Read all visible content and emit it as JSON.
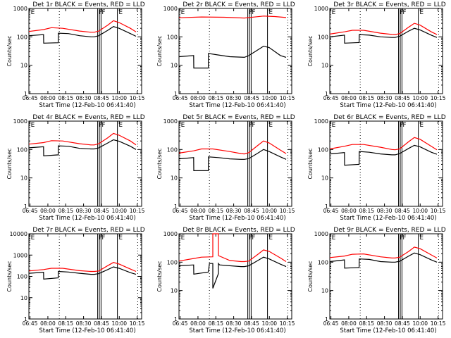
{
  "chart_data": [
    {
      "type": "line",
      "title": "Det 1r BLACK = Events, RED = LLD",
      "xlabel": "Start Time (12-Feb-10 06:41:40)",
      "ylabel": "Counts/sec",
      "yscale": "log",
      "ylim": [
        1,
        1000
      ],
      "ytick_labels": [
        "1",
        "10",
        "100",
        "1000"
      ],
      "xlim": [
        "06:41:40",
        "10:22"
      ],
      "xtick_labels": [
        "06:45",
        "08:00",
        "08:15",
        "08:30",
        "08:45",
        "10:00",
        "10:15"
      ],
      "markers": [
        "E",
        "F",
        "F",
        "E"
      ],
      "series": [
        {
          "name": "LLD",
          "color": "#ff0000",
          "x": [
            0,
            0.13,
            0.2,
            0.3,
            0.45,
            0.55,
            0.58,
            0.62,
            0.7,
            0.75,
            0.8,
            0.9,
            0.95
          ],
          "values": [
            155,
            180,
            210,
            200,
            160,
            145,
            145,
            160,
            260,
            370,
            320,
            200,
            150
          ]
        },
        {
          "name": "Events",
          "color": "#000000",
          "x": [
            0,
            0.13,
            0.131,
            0.26,
            0.261,
            0.35,
            0.45,
            0.55,
            0.58,
            0.62,
            0.7,
            0.75,
            0.8,
            0.9,
            0.95
          ],
          "values": [
            110,
            120,
            60,
            62,
            135,
            130,
            110,
            100,
            100,
            110,
            170,
            230,
            200,
            130,
            105
          ]
        }
      ]
    },
    {
      "type": "line",
      "title": "Det 2r BLACK = Events, RED = LLD",
      "xlabel": "Start Time (12-Feb-10 06:41:40)",
      "ylabel": "Counts/sec",
      "yscale": "log",
      "ylim": [
        1,
        1000
      ],
      "ytick_labels": [
        "1",
        "10",
        "100",
        "1000"
      ],
      "xlim": [
        "06:41:40",
        "10:22"
      ],
      "xtick_labels": [
        "06:45",
        "08:00",
        "08:15",
        "08:30",
        "08:45",
        "10:00",
        "10:15"
      ],
      "markers": [
        "E",
        "F",
        "F",
        "E"
      ],
      "series": [
        {
          "name": "LLD",
          "color": "#ff0000",
          "x": [
            0,
            0.2,
            0.4,
            0.58,
            0.75,
            0.85,
            0.95
          ],
          "values": [
            470,
            500,
            490,
            460,
            540,
            520,
            480
          ]
        },
        {
          "name": "Events",
          "color": "#000000",
          "x": [
            0,
            0.13,
            0.131,
            0.26,
            0.261,
            0.35,
            0.45,
            0.58,
            0.62,
            0.7,
            0.75,
            0.8,
            0.9,
            0.95
          ],
          "values": [
            20,
            22,
            8,
            8,
            26,
            23,
            20,
            19,
            22,
            35,
            47,
            42,
            22,
            19
          ]
        }
      ]
    },
    {
      "type": "line",
      "title": "Det 3r BLACK = Events, RED = LLD",
      "xlabel": "Start Time (12-Feb-10 06:41:40)",
      "ylabel": "Counts/sec",
      "yscale": "log",
      "ylim": [
        1,
        1000
      ],
      "ytick_labels": [
        "1",
        "10",
        "100",
        "1000"
      ],
      "xlim": [
        "06:41:40",
        "10:22"
      ],
      "xtick_labels": [
        "06:45",
        "08:00",
        "08:15",
        "08:30",
        "08:45",
        "10:00",
        "10:15"
      ],
      "markers": [
        "E",
        "F",
        "F",
        "E"
      ],
      "series": [
        {
          "name": "LLD",
          "color": "#ff0000",
          "x": [
            0,
            0.13,
            0.2,
            0.3,
            0.45,
            0.55,
            0.58,
            0.62,
            0.7,
            0.75,
            0.8,
            0.9,
            0.95
          ],
          "values": [
            125,
            150,
            170,
            170,
            135,
            122,
            120,
            130,
            220,
            300,
            260,
            150,
            120
          ]
        },
        {
          "name": "Events",
          "color": "#000000",
          "x": [
            0,
            0.13,
            0.131,
            0.26,
            0.261,
            0.35,
            0.45,
            0.55,
            0.58,
            0.62,
            0.7,
            0.75,
            0.8,
            0.9,
            0.95
          ],
          "values": [
            100,
            115,
            60,
            63,
            120,
            115,
            100,
            95,
            95,
            105,
            160,
            200,
            175,
            115,
            95
          ]
        }
      ]
    },
    {
      "type": "line",
      "title": "Det 4r BLACK = Events, RED = LLD",
      "xlabel": "Start Time (12-Feb-10 06:41:40)",
      "ylabel": "Counts/sec",
      "yscale": "log",
      "ylim": [
        1,
        1000
      ],
      "ytick_labels": [
        "1",
        "10",
        "100",
        "1000"
      ],
      "xlim": [
        "06:41:40",
        "10:22"
      ],
      "xtick_labels": [
        "06:45",
        "08:00",
        "08:15",
        "08:30",
        "08:45",
        "10:00",
        "10:15"
      ],
      "markers": [
        "E",
        "F",
        "F",
        "E"
      ],
      "series": [
        {
          "name": "LLD",
          "color": "#ff0000",
          "x": [
            0,
            0.13,
            0.2,
            0.3,
            0.45,
            0.55,
            0.58,
            0.62,
            0.7,
            0.75,
            0.8,
            0.9,
            0.95
          ],
          "values": [
            155,
            175,
            205,
            200,
            160,
            145,
            145,
            160,
            260,
            370,
            320,
            200,
            145
          ]
        },
        {
          "name": "Events",
          "color": "#000000",
          "x": [
            0,
            0.13,
            0.131,
            0.26,
            0.261,
            0.35,
            0.45,
            0.55,
            0.58,
            0.62,
            0.7,
            0.75,
            0.8,
            0.9,
            0.95
          ],
          "values": [
            115,
            125,
            60,
            65,
            135,
            130,
            110,
            105,
            105,
            115,
            170,
            220,
            195,
            130,
            100
          ]
        }
      ]
    },
    {
      "type": "line",
      "title": "Det 5r BLACK = Events, RED = LLD",
      "xlabel": "Start Time (12-Feb-10 06:41:40)",
      "ylabel": "Counts/sec",
      "yscale": "log",
      "ylim": [
        1,
        1000
      ],
      "ytick_labels": [
        "1",
        "10",
        "100",
        "1000"
      ],
      "xlim": [
        "06:41:40",
        "10:22"
      ],
      "xtick_labels": [
        "06:45",
        "08:00",
        "08:15",
        "08:30",
        "08:45",
        "10:00",
        "10:15"
      ],
      "markers": [
        "E",
        "F",
        "F",
        "E"
      ],
      "series": [
        {
          "name": "LLD",
          "color": "#ff0000",
          "x": [
            0,
            0.13,
            0.2,
            0.3,
            0.45,
            0.55,
            0.58,
            0.62,
            0.7,
            0.75,
            0.8,
            0.9,
            0.95
          ],
          "values": [
            75,
            90,
            105,
            105,
            85,
            72,
            70,
            78,
            140,
            200,
            170,
            95,
            72
          ]
        },
        {
          "name": "Events",
          "color": "#000000",
          "x": [
            0,
            0.13,
            0.131,
            0.26,
            0.261,
            0.35,
            0.45,
            0.55,
            0.58,
            0.62,
            0.7,
            0.75,
            0.8,
            0.9,
            0.95
          ],
          "values": [
            47,
            52,
            18,
            18,
            55,
            52,
            47,
            45,
            45,
            48,
            75,
            100,
            85,
            55,
            45
          ]
        }
      ]
    },
    {
      "type": "line",
      "title": "Det 6r BLACK = Events, RED = LLD",
      "xlabel": "Start Time (12-Feb-10 06:41:40)",
      "ylabel": "Counts/sec",
      "yscale": "log",
      "ylim": [
        1,
        1000
      ],
      "ytick_labels": [
        "1",
        "10",
        "100",
        "1000"
      ],
      "xlim": [
        "06:41:40",
        "10:22"
      ],
      "xtick_labels": [
        "06:45",
        "08:00",
        "08:15",
        "08:30",
        "08:45",
        "10:00",
        "10:15"
      ],
      "markers": [
        "E",
        "F",
        "F",
        "E"
      ],
      "series": [
        {
          "name": "LLD",
          "color": "#ff0000",
          "x": [
            0,
            0.13,
            0.2,
            0.3,
            0.45,
            0.55,
            0.58,
            0.62,
            0.7,
            0.75,
            0.8,
            0.9,
            0.95
          ],
          "values": [
            105,
            130,
            150,
            150,
            120,
            100,
            98,
            105,
            190,
            265,
            230,
            130,
            98
          ]
        },
        {
          "name": "Events",
          "color": "#000000",
          "x": [
            0,
            0.13,
            0.131,
            0.26,
            0.261,
            0.35,
            0.45,
            0.55,
            0.58,
            0.62,
            0.7,
            0.75,
            0.8,
            0.9,
            0.95
          ],
          "values": [
            70,
            78,
            28,
            30,
            85,
            80,
            70,
            65,
            65,
            72,
            110,
            140,
            125,
            80,
            68
          ]
        }
      ]
    },
    {
      "type": "line",
      "title": "Det 7r BLACK = Events, RED = LLD",
      "xlabel": "Start Time (12-Feb-10 06:41:40)",
      "ylabel": "Counts/sec",
      "yscale": "log",
      "ylim": [
        1,
        10000
      ],
      "ytick_labels": [
        "1",
        "10",
        "100",
        "1000",
        "10000"
      ],
      "xlim": [
        "06:41:40",
        "10:22"
      ],
      "xtick_labels": [
        "06:45",
        "08:00",
        "08:15",
        "08:30",
        "08:45",
        "10:00",
        "10:15"
      ],
      "markers": [
        "E",
        "F",
        "F",
        "E"
      ],
      "series": [
        {
          "name": "LLD",
          "color": "#ff0000",
          "x": [
            0,
            0.13,
            0.2,
            0.3,
            0.45,
            0.55,
            0.58,
            0.62,
            0.7,
            0.75,
            0.8,
            0.9,
            0.95
          ],
          "values": [
            180,
            210,
            240,
            240,
            185,
            170,
            170,
            180,
            320,
            450,
            380,
            220,
            170
          ]
        },
        {
          "name": "Events",
          "color": "#000000",
          "x": [
            0,
            0.13,
            0.131,
            0.26,
            0.261,
            0.35,
            0.45,
            0.55,
            0.58,
            0.62,
            0.7,
            0.75,
            0.8,
            0.9,
            0.95
          ],
          "values": [
            140,
            155,
            75,
            85,
            170,
            160,
            140,
            125,
            125,
            135,
            210,
            280,
            240,
            150,
            125
          ]
        }
      ]
    },
    {
      "type": "line",
      "title": "Det 8r BLACK = Events, RED = LLD",
      "xlabel": "Start Time (12-Feb-10 06:41:40)",
      "ylabel": "Counts/sec",
      "yscale": "log",
      "ylim": [
        1,
        1000
      ],
      "ytick_labels": [
        "1",
        "10",
        "100",
        "1000"
      ],
      "xlim": [
        "06:41:40",
        "10:22"
      ],
      "xtick_labels": [
        "06:45",
        "08:00",
        "08:15",
        "08:30",
        "08:45",
        "10:00",
        "10:15"
      ],
      "markers": [
        "E",
        "F",
        "F",
        "E"
      ],
      "series": [
        {
          "name": "LLD",
          "color": "#ff0000",
          "x": [
            0,
            0.13,
            0.2,
            0.3,
            0.3,
            0.35,
            0.35,
            0.45,
            0.55,
            0.58,
            0.62,
            0.7,
            0.75,
            0.8,
            0.9,
            0.95
          ],
          "values": [
            110,
            135,
            150,
            155,
            1000,
            1000,
            170,
            115,
            105,
            105,
            110,
            190,
            270,
            240,
            140,
            105
          ]
        },
        {
          "name": "Events",
          "color": "#000000",
          "x": [
            0,
            0.13,
            0.131,
            0.26,
            0.27,
            0.3,
            0.3,
            0.35,
            0.35,
            0.36,
            0.45,
            0.55,
            0.58,
            0.62,
            0.7,
            0.75,
            0.8,
            0.9,
            0.95
          ],
          "values": [
            75,
            80,
            38,
            45,
            90,
            90,
            12,
            40,
            90,
            80,
            75,
            70,
            70,
            75,
            115,
            150,
            130,
            85,
            70
          ]
        }
      ]
    },
    {
      "type": "line",
      "title": "Det 9r BLACK = Events, RED = LLD",
      "xlabel": "Start Time (12-Feb-10 06:41:40)",
      "ylabel": "Counts/sec",
      "yscale": "log",
      "ylim": [
        1,
        1000
      ],
      "ytick_labels": [
        "1",
        "10",
        "100",
        "1000"
      ],
      "xlim": [
        "06:41:40",
        "10:22"
      ],
      "xtick_labels": [
        "06:45",
        "08:00",
        "08:15",
        "08:30",
        "08:45",
        "10:00",
        "10:15"
      ],
      "markers": [
        "E",
        "F",
        "F",
        "E"
      ],
      "series": [
        {
          "name": "LLD",
          "color": "#ff0000",
          "x": [
            0,
            0.13,
            0.2,
            0.3,
            0.45,
            0.55,
            0.58,
            0.62,
            0.7,
            0.75,
            0.8,
            0.9,
            0.95
          ],
          "values": [
            145,
            165,
            190,
            195,
            155,
            140,
            140,
            150,
            240,
            340,
            300,
            180,
            140
          ]
        },
        {
          "name": "Events",
          "color": "#000000",
          "x": [
            0,
            0.13,
            0.131,
            0.26,
            0.261,
            0.35,
            0.45,
            0.55,
            0.58,
            0.62,
            0.7,
            0.75,
            0.8,
            0.9,
            0.95
          ],
          "values": [
            105,
            120,
            62,
            65,
            130,
            125,
            105,
            100,
            100,
            108,
            165,
            210,
            185,
            120,
            100
          ]
        }
      ]
    }
  ]
}
